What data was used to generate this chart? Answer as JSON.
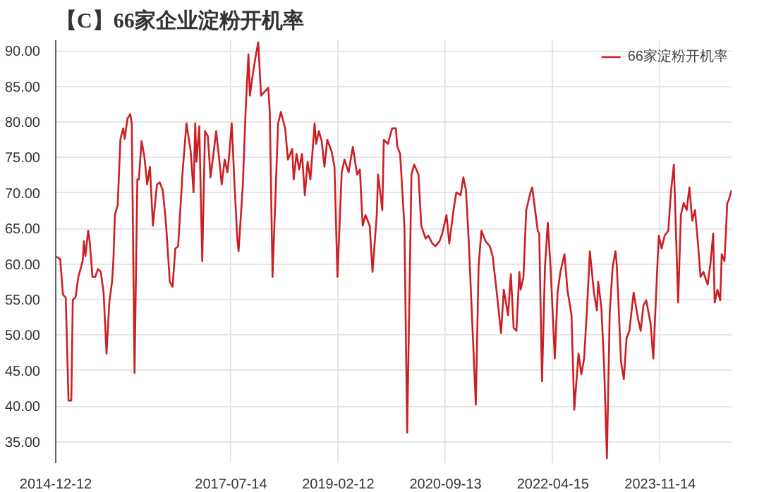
{
  "chart_data": {
    "type": "line",
    "title": "【C】66家企业淀粉开机率",
    "x": [
      "2014-12-12",
      "2015-01-05",
      "2015-01-20",
      "2015-02-04",
      "2015-02-19",
      "2015-03-06",
      "2015-03-14",
      "2015-03-29",
      "2015-04-13",
      "2015-05-06",
      "2015-05-13",
      "2015-05-21",
      "2015-06-05",
      "2015-06-13",
      "2015-06-28",
      "2015-07-13",
      "2015-07-28",
      "2015-08-12",
      "2015-08-27",
      "2015-09-12",
      "2015-09-27",
      "2015-10-12",
      "2015-10-19",
      "2015-10-27",
      "2015-11-11",
      "2015-11-26",
      "2015-12-11",
      "2015-12-19",
      "2016-01-03",
      "2016-01-18",
      "2016-01-26",
      "2016-02-10",
      "2016-02-25",
      "2016-03-04",
      "2016-03-19",
      "2016-04-03",
      "2016-04-18",
      "2016-05-03",
      "2016-05-19",
      "2016-06-10",
      "2016-06-25",
      "2016-07-11",
      "2016-07-26",
      "2016-08-02",
      "2016-08-18",
      "2016-09-02",
      "2016-09-17",
      "2016-10-02",
      "2016-10-25",
      "2016-11-16",
      "2016-12-09",
      "2016-12-24",
      "2017-01-02",
      "2017-01-09",
      "2017-01-24",
      "2017-02-09",
      "2017-02-24",
      "2017-03-11",
      "2017-03-26",
      "2017-04-25",
      "2017-05-10",
      "2017-05-25",
      "2017-06-10",
      "2017-06-25",
      "2017-07-02",
      "2017-07-18",
      "2017-08-02",
      "2017-08-17",
      "2017-08-24",
      "2017-09-16",
      "2017-10-01",
      "2017-10-16",
      "2017-10-24",
      "2017-11-08",
      "2017-11-23",
      "2017-12-08",
      "2017-12-23",
      "2018-01-31",
      "2018-02-08",
      "2018-02-23",
      "2018-03-25",
      "2018-04-09",
      "2018-05-02",
      "2018-05-17",
      "2018-06-09",
      "2018-06-17",
      "2018-07-02",
      "2018-07-17",
      "2018-08-01",
      "2018-08-16",
      "2018-08-31",
      "2018-09-15",
      "2018-10-08",
      "2018-10-16",
      "2018-10-31",
      "2018-11-15",
      "2018-11-30",
      "2018-12-15",
      "2019-01-08",
      "2019-01-23",
      "2019-02-08",
      "2019-03-03",
      "2019-03-18",
      "2019-04-09",
      "2019-05-02",
      "2019-05-25",
      "2019-06-09",
      "2019-06-24",
      "2019-07-09",
      "2019-08-01",
      "2019-08-16",
      "2019-09-08",
      "2019-09-15",
      "2019-10-08",
      "2019-10-16",
      "2019-11-07",
      "2019-11-30",
      "2019-12-20",
      "2019-12-28",
      "2020-01-12",
      "2020-02-04",
      "2020-02-19",
      "2020-03-13",
      "2020-03-28",
      "2020-04-20",
      "2020-05-05",
      "2020-05-28",
      "2020-06-12",
      "2020-07-04",
      "2020-07-20",
      "2020-08-11",
      "2020-08-26",
      "2020-09-18",
      "2020-10-03",
      "2020-10-26",
      "2020-11-10",
      "2020-12-03",
      "2020-12-18",
      "2021-01-01",
      "2021-01-16",
      "2021-02-23",
      "2021-03-10",
      "2021-03-25",
      "2021-04-17",
      "2021-05-10",
      "2021-05-25",
      "2021-06-16",
      "2021-07-09",
      "2021-07-24",
      "2021-08-16",
      "2021-08-31",
      "2021-09-15",
      "2021-09-30",
      "2021-10-16",
      "2021-10-23",
      "2021-11-07",
      "2021-11-22",
      "2021-12-15",
      "2021-12-24",
      "2022-01-23",
      "2022-01-31",
      "2022-02-15",
      "2022-03-03",
      "2022-03-18",
      "2022-04-02",
      "2022-04-25",
      "2022-05-10",
      "2022-05-25",
      "2022-06-16",
      "2022-07-02",
      "2022-07-24",
      "2022-08-08",
      "2022-08-31",
      "2022-09-15",
      "2022-09-30",
      "2022-10-16",
      "2022-10-31",
      "2022-11-22",
      "2022-12-08",
      "2022-12-15",
      "2023-01-01",
      "2023-01-16",
      "2023-01-31",
      "2023-02-15",
      "2023-03-03",
      "2023-03-18",
      "2023-03-25",
      "2023-04-17",
      "2023-05-02",
      "2023-05-17",
      "2023-06-01",
      "2023-06-24",
      "2023-07-17",
      "2023-08-01",
      "2023-08-16",
      "2023-08-31",
      "2023-09-23",
      "2023-10-08",
      "2023-10-31",
      "2023-11-07",
      "2023-11-22",
      "2023-12-08",
      "2023-12-28",
      "2024-01-12",
      "2024-01-27",
      "2024-02-19",
      "2024-03-05",
      "2024-03-20",
      "2024-04-05",
      "2024-04-20",
      "2024-05-05",
      "2024-05-20",
      "2024-06-04",
      "2024-06-19",
      "2024-07-04",
      "2024-07-27",
      "2024-08-11",
      "2024-08-26",
      "2024-09-03",
      "2024-09-18",
      "2024-10-03",
      "2024-10-11",
      "2024-10-26",
      "2024-11-10",
      "2024-11-18",
      "2024-12-03"
    ],
    "series": [
      {
        "name": "66家淀粉开机率",
        "color": "#cc1f25",
        "values": [
          61.1,
          60.7,
          55.7,
          55.3,
          40.8,
          40.8,
          55.0,
          55.3,
          58.2,
          60.4,
          63.2,
          61.1,
          64.7,
          63.2,
          58.2,
          58.2,
          59.3,
          58.9,
          56.0,
          47.4,
          54.6,
          57.6,
          60.6,
          66.9,
          68.3,
          77.6,
          79.1,
          77.6,
          80.5,
          81.1,
          79.8,
          44.7,
          71.9,
          71.9,
          77.3,
          75.1,
          71.2,
          73.7,
          65.4,
          71.2,
          71.5,
          70.4,
          66.5,
          64.0,
          57.5,
          56.8,
          62.2,
          62.5,
          72.6,
          79.8,
          75.8,
          70.1,
          79.8,
          74.4,
          79.4,
          60.4,
          78.7,
          78.0,
          72.2,
          78.7,
          75.1,
          71.2,
          74.7,
          72.9,
          74.7,
          79.8,
          71.2,
          63.6,
          61.8,
          71.2,
          81.6,
          89.5,
          83.7,
          86.6,
          89.1,
          91.2,
          83.7,
          84.8,
          81.6,
          58.2,
          79.8,
          81.4,
          79.1,
          74.7,
          76.2,
          71.9,
          75.5,
          73.3,
          75.5,
          69.7,
          74.4,
          71.9,
          79.8,
          76.9,
          78.7,
          77.3,
          73.7,
          77.5,
          75.8,
          73.7,
          58.2,
          72.9,
          74.7,
          72.9,
          76.5,
          72.6,
          73.3,
          65.4,
          66.9,
          65.4,
          58.9,
          66.9,
          72.6,
          67.6,
          77.5,
          76.9,
          79.1,
          79.1,
          76.5,
          75.5,
          65.4,
          36.3,
          72.6,
          74.0,
          72.6,
          65.4,
          63.6,
          64.0,
          62.9,
          62.5,
          63.2,
          64.3,
          66.9,
          62.9,
          67.6,
          70.1,
          69.7,
          72.2,
          70.4,
          63.2,
          40.2,
          59.6,
          64.7,
          63.2,
          62.5,
          61.1,
          56.0,
          50.3,
          56.4,
          52.8,
          58.6,
          51.0,
          50.6,
          58.9,
          56.4,
          58.2,
          67.6,
          70.1,
          70.8,
          64.7,
          64.3,
          43.5,
          59.6,
          65.8,
          59.6,
          46.7,
          56.0,
          58.9,
          61.4,
          56.4,
          52.8,
          39.5,
          47.4,
          44.5,
          46.7,
          53.9,
          61.8,
          56.0,
          53.5,
          57.5,
          53.9,
          45.6,
          32.7,
          53.1,
          59.6,
          61.8,
          60.0,
          46.3,
          43.8,
          49.6,
          50.6,
          56.0,
          52.4,
          50.6,
          54.2,
          54.9,
          51.7,
          46.7,
          60.4,
          64.0,
          62.2,
          64.0,
          64.7,
          70.4,
          74.0,
          54.6,
          66.9,
          68.6,
          67.6,
          70.8,
          66.1,
          67.6,
          63.2,
          58.2,
          58.9,
          57.1,
          60.0,
          64.3,
          54.6,
          56.4,
          54.9,
          61.4,
          60.4,
          68.6,
          69.0,
          70.4
        ]
      }
    ],
    "xlim": [
      "2014-12-12",
      "2024-12-03"
    ],
    "xticks": [
      "2014-12-12",
      "2017-07-14",
      "2019-02-12",
      "2020-09-13",
      "2022-04-15",
      "2023-11-14"
    ],
    "ylim": [
      32,
      91.5
    ],
    "yticks": [
      {
        "value": 35,
        "label": "35.00"
      },
      {
        "value": 40,
        "label": "40.00"
      },
      {
        "value": 45,
        "label": "45.00"
      },
      {
        "value": 50,
        "label": "50.00"
      },
      {
        "value": 55,
        "label": "55.00"
      },
      {
        "value": 60,
        "label": "60.00"
      },
      {
        "value": 65,
        "label": "65.00"
      },
      {
        "value": 70,
        "label": "70.00"
      },
      {
        "value": 75,
        "label": "75.00"
      },
      {
        "value": 80,
        "label": "80.00"
      },
      {
        "value": 85,
        "label": "85.00"
      },
      {
        "value": 90,
        "label": "90.00"
      }
    ],
    "grid": true,
    "legend": "top right",
    "marker": "none",
    "line_style": "solid"
  }
}
